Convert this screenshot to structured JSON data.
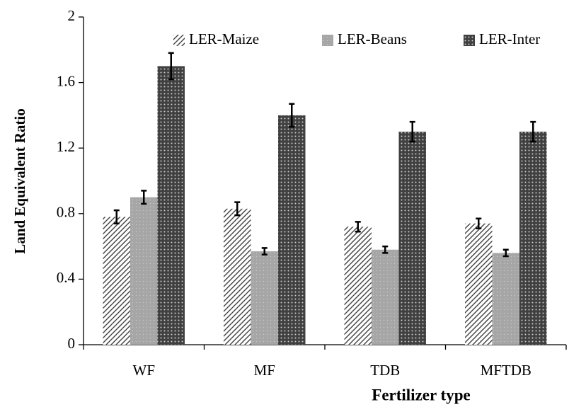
{
  "chart_data": {
    "type": "bar",
    "xlabel": "Fertilizer  type",
    "ylabel": "Land Equivalent Ratio",
    "categories": [
      "WF",
      "MF",
      "TDB",
      "MFTDB"
    ],
    "series": [
      {
        "name": "LER-Maize",
        "color": "#404040",
        "values": [
          0.78,
          0.83,
          0.72,
          0.74
        ],
        "errors": [
          0.04,
          0.04,
          0.03,
          0.03
        ]
      },
      {
        "name": "LER-Beans",
        "color": "#a6a6a6",
        "values": [
          0.9,
          0.57,
          0.58,
          0.56
        ],
        "errors": [
          0.04,
          0.02,
          0.02,
          0.02
        ]
      },
      {
        "name": "LER-Inter",
        "color": "#404040",
        "values": [
          1.7,
          1.4,
          1.3,
          1.3
        ],
        "errors": [
          0.08,
          0.07,
          0.06,
          0.06
        ]
      }
    ],
    "ylim": [
      0,
      2
    ],
    "yticks": [
      0,
      0.4,
      0.8,
      1.2,
      1.6,
      2
    ],
    "grid": false,
    "legend": "top-right"
  }
}
